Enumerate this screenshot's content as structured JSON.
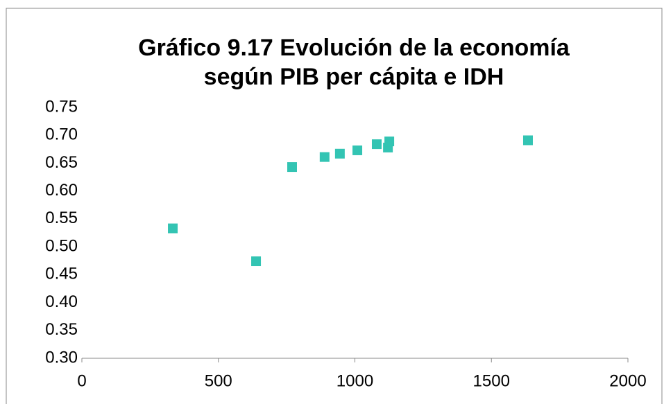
{
  "chart_data": {
    "type": "scatter",
    "title": "Gráfico 9.17 Evolución de la economía según PIB per cápita e IDH",
    "color": "#33c4b3",
    "x": [
      333,
      638,
      770,
      889,
      945,
      1009,
      1080,
      1121,
      1126,
      1634
    ],
    "values": [
      0.533,
      0.474,
      0.643,
      0.661,
      0.667,
      0.673,
      0.684,
      0.678,
      0.689,
      0.691
    ],
    "xlim": [
      0,
      2000
    ],
    "xticks": [
      0,
      500,
      1000,
      1500,
      2000
    ],
    "ylim": [
      0.3,
      0.75
    ],
    "yticks": [
      {
        "value": 0.3,
        "label": "0.30"
      },
      0.35,
      {
        "value": 0.4,
        "label": "0.40"
      },
      0.45,
      {
        "value": 0.5,
        "label": "0.50"
      },
      0.55,
      {
        "value": 0.6,
        "label": "0.60"
      },
      0.65,
      {
        "value": 0.7,
        "label": "0.70"
      },
      0.75
    ]
  }
}
